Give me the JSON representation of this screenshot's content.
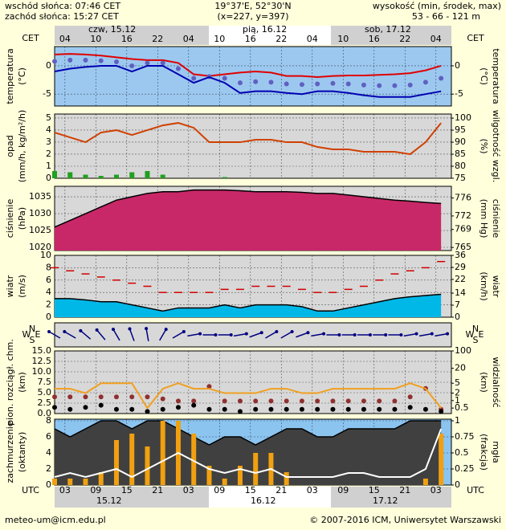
{
  "header": {
    "sunrise": "wschód słońca: 07:46 CET",
    "sunset": "zachód słońca: 15:27 CET",
    "coords": "19°37'E, 52°30'N",
    "grid": "(x=227, y=397)",
    "height_title": "wysokość (min, środek, max)",
    "height": "53 - 66 - 121 m"
  },
  "time": {
    "xlim": [
      0,
      77
    ],
    "cet": "CET",
    "utc": "UTC",
    "cet_ticks": [
      {
        "value": 2,
        "label": "04"
      },
      {
        "value": 8,
        "label": "10"
      },
      {
        "value": 14,
        "label": "16"
      },
      {
        "value": 20,
        "label": "22"
      },
      {
        "value": 26,
        "label": "04"
      },
      {
        "value": 32,
        "label": "10"
      },
      {
        "value": 38,
        "label": "16"
      },
      {
        "value": 44,
        "label": "22"
      },
      {
        "value": 50,
        "label": "04"
      },
      {
        "value": 56,
        "label": "10"
      },
      {
        "value": 62,
        "label": "16"
      },
      {
        "value": 68,
        "label": "22"
      },
      {
        "value": 74,
        "label": "04"
      }
    ],
    "utc_ticks": [
      {
        "value": 2,
        "label": "03"
      },
      {
        "value": 8,
        "label": "09"
      },
      {
        "value": 14,
        "label": "15"
      },
      {
        "value": 20,
        "label": "21"
      },
      {
        "value": 26,
        "label": "03"
      },
      {
        "value": 32,
        "label": "09"
      },
      {
        "value": 38,
        "label": "15"
      },
      {
        "value": 44,
        "label": "21"
      },
      {
        "value": 50,
        "label": "03"
      },
      {
        "value": 56,
        "label": "09"
      },
      {
        "value": 62,
        "label": "15"
      },
      {
        "value": 68,
        "label": "21"
      },
      {
        "value": 74,
        "label": "03"
      }
    ],
    "days_top": [
      "czw, 15.12",
      "pią, 16.12",
      "sob, 17.12"
    ],
    "days_bottom": [
      "15.12",
      "16.12",
      "17.12"
    ]
  },
  "footer": {
    "email": "meteo-um@icm.edu.pl",
    "copyright": "© 2007-2016 ICM, Uniwersytet Warszawski"
  },
  "chart_data": [
    {
      "type": "line",
      "ylabel": [
        "temperatura",
        "(°C)"
      ],
      "y2label": [
        "(°C)",
        "temperatura"
      ],
      "background": "#9cc8f0",
      "grid": true,
      "x": [
        0,
        3,
        6,
        9,
        12,
        15,
        18,
        21,
        24,
        27,
        30,
        33,
        36,
        39,
        42,
        45,
        48,
        51,
        54,
        57,
        60,
        63,
        66,
        69,
        72,
        75
      ],
      "ylim": [
        -7.1,
        3.4
      ],
      "yticks": [
        0,
        -5
      ],
      "y2lim": [
        -7.1,
        3.4
      ],
      "y2ticks": [
        0,
        -5
      ],
      "series": [
        {
          "style": "line",
          "color": "#e00000",
          "values": [
            2,
            2.1,
            2,
            1.8,
            1.5,
            1.2,
            1,
            1,
            0.5,
            -1.5,
            -1.8,
            -1.5,
            -1.2,
            -1,
            -1.2,
            -1.8,
            -1.8,
            -2,
            -1.8,
            -1.7,
            -1.7,
            -1.6,
            -1.5,
            -1.3,
            -0.8,
            0
          ]
        },
        {
          "style": "dots",
          "color": "#6060c0",
          "values": [
            0.8,
            1,
            1,
            0.9,
            0.7,
            0,
            0.5,
            0.5,
            -0.5,
            -2.2,
            -1.9,
            -2.2,
            -3,
            -2.8,
            -2.9,
            -3.2,
            -3.3,
            -3.2,
            -3.1,
            -3.2,
            -3.4,
            -3.5,
            -3.5,
            -3.4,
            -2.9,
            -2.2
          ]
        },
        {
          "style": "line",
          "color": "#0000b0",
          "values": [
            -1,
            -0.5,
            -0.2,
            0,
            0,
            -1,
            0,
            0,
            -1.5,
            -3,
            -2,
            -3,
            -4.8,
            -4.5,
            -4.5,
            -4.8,
            -5,
            -4.5,
            -4.5,
            -4.8,
            -5.2,
            -5.5,
            -5.5,
            -5.5,
            -5,
            -4.5
          ]
        }
      ]
    },
    {
      "type": "line",
      "ylabel": [
        "opad",
        "(mm/h, kg/m²/h)"
      ],
      "y2label": [
        "(%)",
        "wilgotność wzgl."
      ],
      "background": "#d8d8d8",
      "grid": true,
      "x": [
        0,
        3,
        6,
        9,
        12,
        15,
        18,
        21,
        24,
        27,
        30,
        33,
        36,
        39,
        42,
        45,
        48,
        51,
        54,
        57,
        60,
        63,
        66,
        69,
        72,
        75
      ],
      "ylim": [
        0,
        5.33
      ],
      "yticks": [
        0,
        1,
        2,
        3,
        4,
        5
      ],
      "y2lim": [
        75,
        101.7
      ],
      "y2ticks": [
        75,
        80,
        85,
        90,
        95,
        100
      ],
      "series": [
        {
          "style": "bars",
          "color": "#20a020",
          "values": [
            0.6,
            0.5,
            0.3,
            0.2,
            0.3,
            0.5,
            0.6,
            0.3,
            0,
            0,
            0,
            0.1,
            0,
            0,
            0,
            0,
            0,
            0,
            0,
            0,
            0,
            0,
            0,
            0,
            0,
            0
          ]
        },
        {
          "style": "line",
          "color": "#d04000",
          "axis": "y2",
          "values": [
            94,
            92,
            90,
            94,
            95,
            93,
            95,
            97,
            98,
            96,
            90,
            90,
            90,
            91,
            91,
            90,
            90,
            88,
            87,
            87,
            86,
            86,
            86,
            85,
            90,
            98
          ]
        }
      ]
    },
    {
      "type": "line",
      "ylabel": [
        "ciśnienie",
        "(hPa)"
      ],
      "y2label": [
        "(mm Hg)",
        "ciśnienie"
      ],
      "background": "#d8d8d8",
      "grid": true,
      "x": [
        0,
        3,
        6,
        9,
        12,
        15,
        18,
        21,
        24,
        27,
        30,
        33,
        36,
        39,
        42,
        45,
        48,
        51,
        54,
        57,
        60,
        63,
        66,
        69,
        72,
        75
      ],
      "ylim": [
        1019.05,
        1038.1
      ],
      "yticks": [
        1020,
        1025,
        1030,
        1035
      ],
      "y2lim": [
        764.3,
        778.6
      ],
      "y2ticks": [
        765,
        769,
        772,
        776
      ],
      "series": [
        {
          "style": "area",
          "color": "#c82868",
          "values": [
            1026,
            1028,
            1030,
            1032,
            1034,
            1035,
            1036,
            1036.5,
            1036.5,
            1037,
            1037,
            1037,
            1036.8,
            1036.5,
            1036.5,
            1036.5,
            1036.3,
            1036,
            1036,
            1035.5,
            1035,
            1034.5,
            1034,
            1033.7,
            1033.3,
            1033
          ]
        }
      ]
    },
    {
      "type": "line",
      "ylabel": [
        "wiatr",
        "(m/s)"
      ],
      "y2label": [
        "(km/h)",
        "wiatr"
      ],
      "background": "#d8d8d8",
      "grid": true,
      "x": [
        0,
        3,
        6,
        9,
        12,
        15,
        18,
        21,
        24,
        27,
        30,
        33,
        36,
        39,
        42,
        45,
        48,
        51,
        54,
        57,
        60,
        63,
        66,
        69,
        72,
        75
      ],
      "ylim": [
        0,
        10
      ],
      "yticks": [
        0,
        2,
        4,
        6,
        8,
        10
      ],
      "y2lim": [
        0,
        36
      ],
      "y2ticks": [
        0,
        7,
        14,
        22,
        29,
        36
      ],
      "series": [
        {
          "style": "area",
          "color": "#00b8e8",
          "values": [
            3,
            3,
            2.8,
            2.5,
            2.5,
            2,
            1.5,
            1,
            1.5,
            1.5,
            1.5,
            2,
            1.5,
            2,
            2,
            2,
            1.7,
            1,
            1,
            1.5,
            2,
            2.5,
            3,
            3.3,
            3.5,
            3.7
          ]
        },
        {
          "style": "dashes",
          "color": "#d00000",
          "values": [
            8,
            7.5,
            7,
            6.5,
            6,
            5.5,
            5,
            4,
            4,
            4,
            4,
            4.5,
            4.5,
            5,
            5,
            5,
            4.5,
            4,
            4,
            4.5,
            5,
            6,
            7,
            7.5,
            8,
            9
          ]
        }
      ]
    },
    {
      "type": "arrows",
      "compass": [
        "N",
        "S",
        "W",
        "E"
      ],
      "background": "#d8d8d8",
      "x": [
        0,
        3,
        6,
        9,
        12,
        15,
        18,
        21,
        24,
        27,
        30,
        33,
        36,
        39,
        42,
        45,
        48,
        51,
        54,
        57,
        60,
        63,
        66,
        69,
        72,
        75
      ],
      "series": [
        {
          "color": "#000080",
          "values": [
            300,
            300,
            310,
            320,
            330,
            340,
            350,
            30,
            60,
            80,
            90,
            90,
            80,
            70,
            60,
            60,
            70,
            80,
            90,
            90,
            90,
            90,
            90,
            80,
            80,
            80
          ]
        }
      ]
    },
    {
      "type": "line",
      "ylabel": [
        "pion. rozciągł. chm.",
        "(km)"
      ],
      "y2label": [
        "(km)",
        "widzialność"
      ],
      "background": "#d8d8d8",
      "grid": true,
      "x": [
        0,
        3,
        6,
        9,
        12,
        15,
        18,
        21,
        24,
        27,
        30,
        33,
        36,
        39,
        42,
        45,
        48,
        51,
        54,
        57,
        60,
        63,
        66,
        69,
        72,
        75
      ],
      "ylim": [
        0,
        15
      ],
      "yticks": [
        {
          "value": 0,
          "label": "0.0"
        },
        {
          "value": 2.5,
          "label": "2.5"
        },
        {
          "value": 5,
          "label": "5.0"
        },
        {
          "value": 7.5,
          "label": "7.5"
        },
        {
          "value": 10,
          "label": "10.0"
        },
        {
          "value": 12.5,
          "label": "12.5"
        },
        {
          "value": 15,
          "label": "15.0"
        }
      ],
      "y2scale": "log",
      "y2lim": [
        0.3,
        100
      ],
      "y2ticks": [
        0.5,
        1,
        2,
        5,
        20,
        100
      ],
      "series": [
        {
          "style": "dots",
          "color": "#903030",
          "values": [
            4,
            4,
            4,
            4,
            4,
            4,
            4,
            3.5,
            3,
            3,
            6.5,
            3,
            3,
            3,
            3,
            3,
            3,
            3,
            3,
            3,
            3,
            3,
            3,
            4,
            6,
            1
          ]
        },
        {
          "style": "dots",
          "color": "#000000",
          "values": [
            1.5,
            1,
            1.5,
            2,
            1,
            1,
            0.5,
            1,
            1.5,
            2,
            1,
            1,
            0.5,
            1,
            1,
            1,
            1,
            1,
            1,
            1,
            1,
            1,
            1,
            1.5,
            1,
            0.5
          ]
        },
        {
          "style": "line",
          "color": "#f0a020",
          "axis": "y2",
          "values": [
            3,
            3,
            2,
            5,
            5,
            5,
            0.5,
            3,
            5,
            3,
            3,
            2,
            2,
            2,
            3,
            3,
            2,
            2,
            3,
            3,
            3,
            3,
            3,
            5,
            3,
            0.5
          ]
        }
      ]
    },
    {
      "type": "line",
      "ylabel": [
        "zachmurzenie",
        "(oktanty)"
      ],
      "y2label": [
        "(frakcja)",
        "mgła"
      ],
      "background": "#8cc4f0",
      "grid": true,
      "x": [
        0,
        3,
        6,
        9,
        12,
        15,
        18,
        21,
        24,
        27,
        30,
        33,
        36,
        39,
        42,
        45,
        48,
        51,
        54,
        57,
        60,
        63,
        66,
        69,
        72,
        75
      ],
      "ylim": [
        0,
        8.2
      ],
      "yticks": [
        0,
        2,
        4,
        6,
        8
      ],
      "y2lim": [
        0,
        1.025
      ],
      "y2ticks": [
        0,
        0.25,
        0.5,
        0.75,
        1
      ],
      "series": [
        {
          "style": "area",
          "color": "#404040",
          "values": [
            7,
            6,
            7,
            8,
            8,
            7,
            8,
            8,
            7,
            6,
            5,
            6,
            6,
            5,
            6,
            7,
            7,
            6,
            6,
            7,
            7,
            7,
            7,
            8,
            8,
            8
          ]
        },
        {
          "style": "bars",
          "color": "#f0a010",
          "axis": "y2",
          "values": [
            0.1,
            0.1,
            0.1,
            0.2,
            0.7,
            0.8,
            0.6,
            1,
            1,
            0.8,
            0.3,
            0.1,
            0.3,
            0.5,
            0.5,
            0.2,
            0,
            0,
            0,
            0,
            0,
            0,
            0,
            0,
            0.1,
            0.8
          ]
        },
        {
          "style": "line",
          "color": "#ffffff",
          "values": [
            1,
            1.5,
            1,
            1.5,
            2,
            1,
            2,
            3,
            4,
            3,
            2,
            1.5,
            2,
            1.5,
            2,
            1,
            1,
            1,
            1,
            1.5,
            1.5,
            1,
            1,
            1,
            2,
            7
          ]
        }
      ]
    }
  ]
}
